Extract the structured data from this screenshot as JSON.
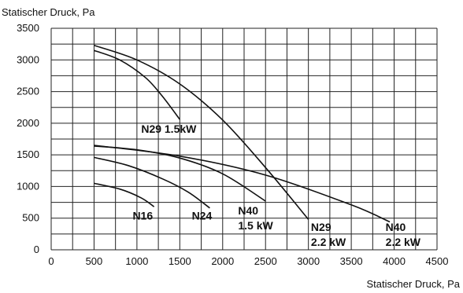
{
  "chart_data": {
    "type": "line",
    "ylabel": "Statischer Druck, Pa",
    "xlabel": "Statischer Druck, Pa",
    "xlim": [
      0,
      4500
    ],
    "ylim": [
      0,
      3500
    ],
    "x_ticks": [
      0,
      500,
      1000,
      1500,
      2000,
      2500,
      3000,
      3500,
      4000,
      4500
    ],
    "y_ticks": [
      0,
      500,
      1000,
      1500,
      2000,
      2500,
      3000,
      3500
    ],
    "grid": true,
    "series": [
      {
        "name": "N16",
        "points": [
          [
            500,
            1050
          ],
          [
            800,
            960
          ],
          [
            1050,
            820
          ],
          [
            1200,
            680
          ]
        ]
      },
      {
        "name": "N24",
        "points": [
          [
            500,
            1460
          ],
          [
            900,
            1330
          ],
          [
            1300,
            1120
          ],
          [
            1600,
            910
          ],
          [
            1850,
            660
          ]
        ]
      },
      {
        "name": "N40 1.5 kW",
        "points": [
          [
            500,
            1640
          ],
          [
            1000,
            1580
          ],
          [
            1500,
            1450
          ],
          [
            2000,
            1200
          ],
          [
            2500,
            770
          ]
        ]
      },
      {
        "name": "N29 2.2 kW",
        "points": [
          [
            500,
            3230
          ],
          [
            1000,
            3000
          ],
          [
            1500,
            2620
          ],
          [
            2000,
            2050
          ],
          [
            2500,
            1300
          ],
          [
            3000,
            480
          ]
        ]
      },
      {
        "name": "N40 2.2 kW",
        "points": [
          [
            500,
            1650
          ],
          [
            1500,
            1480
          ],
          [
            2500,
            1180
          ],
          [
            3500,
            710
          ],
          [
            3950,
            440
          ]
        ]
      },
      {
        "name": "N29 1.5kW",
        "points": [
          [
            500,
            3150
          ],
          [
            800,
            3000
          ],
          [
            1100,
            2720
          ],
          [
            1300,
            2420
          ],
          [
            1500,
            2060
          ]
        ]
      }
    ],
    "labels": [
      {
        "text": "N29 1.5kW",
        "x": 1050,
        "y": 1850
      },
      {
        "text": "N16",
        "x": 950,
        "y": 480
      },
      {
        "text": "N24",
        "x": 1640,
        "y": 480
      },
      {
        "text": "N40",
        "x": 2180,
        "y": 560
      },
      {
        "text": "1.5 kW",
        "x": 2180,
        "y": 320
      },
      {
        "text": "N29",
        "x": 3030,
        "y": 300
      },
      {
        "text": "2.2 kW",
        "x": 3030,
        "y": 60
      },
      {
        "text": "N40",
        "x": 3900,
        "y": 300
      },
      {
        "text": "2.2 kW",
        "x": 3900,
        "y": 60
      }
    ]
  }
}
